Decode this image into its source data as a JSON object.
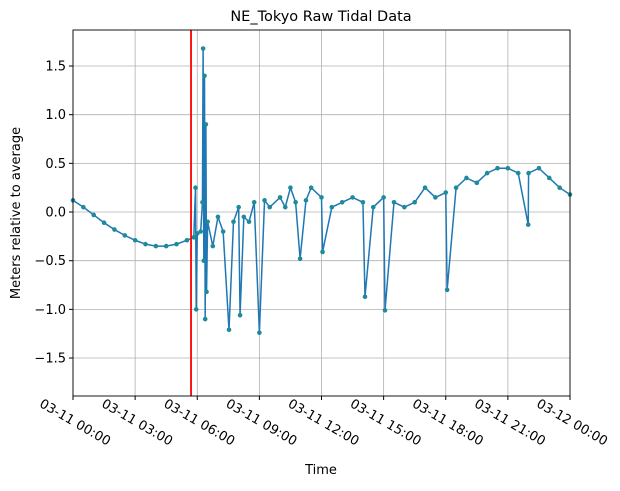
{
  "chart_data": {
    "type": "line",
    "title": "NE_Tokyo Raw Tidal Data",
    "x_label": "Time",
    "y_label": "Meters relative to average",
    "x": [
      "03-11 00:00",
      "03-11 00:30",
      "03-11 01:00",
      "03-11 01:30",
      "03-11 02:00",
      "03-11 02:30",
      "03-11 03:00",
      "03-11 03:30",
      "03-11 04:00",
      "03-11 04:30",
      "03-11 05:00",
      "03-11 05:30",
      "03-11 05:50",
      "03-11 05:55",
      "03-11 05:57",
      "03-11 06:00",
      "03-11 06:10",
      "03-11 06:15",
      "03-11 06:17",
      "03-11 06:19",
      "03-11 06:21",
      "03-11 06:23",
      "03-11 06:25",
      "03-11 06:27",
      "03-11 06:30",
      "03-11 06:45",
      "03-11 07:00",
      "03-11 07:15",
      "03-11 07:32",
      "03-11 07:45",
      "03-11 08:00",
      "03-11 08:04",
      "03-11 08:15",
      "03-11 08:30",
      "03-11 08:45",
      "03-11 09:00",
      "03-11 09:15",
      "03-11 09:30",
      "03-11 10:00",
      "03-11 10:15",
      "03-11 10:30",
      "03-11 10:45",
      "03-11 10:58",
      "03-11 11:15",
      "03-11 11:30",
      "03-11 12:00",
      "03-11 12:03",
      "03-11 12:30",
      "03-11 13:00",
      "03-11 13:30",
      "03-11 14:00",
      "03-11 14:06",
      "03-11 14:30",
      "03-11 15:00",
      "03-11 15:04",
      "03-11 15:30",
      "03-11 16:00",
      "03-11 16:30",
      "03-11 17:00",
      "03-11 17:30",
      "03-11 18:00",
      "03-11 18:04",
      "03-11 18:30",
      "03-11 19:00",
      "03-11 19:30",
      "03-11 20:00",
      "03-11 20:30",
      "03-11 21:00",
      "03-11 21:30",
      "03-11 21:59",
      "03-11 22:00",
      "03-11 22:30",
      "03-11 23:00",
      "03-11 23:30",
      "03-12 00:00"
    ],
    "series": [
      {
        "color": "#1f77b4",
        "marker_color": "#1f8a9a",
        "values": [
          0.12,
          0.05,
          -0.03,
          -0.11,
          -0.18,
          -0.24,
          -0.29,
          -0.33,
          -0.35,
          -0.35,
          -0.33,
          -0.29,
          -0.26,
          0.25,
          -1.0,
          -0.22,
          -0.2,
          0.1,
          1.68,
          -0.5,
          1.4,
          -1.1,
          0.9,
          -0.82,
          -0.1,
          -0.35,
          -0.05,
          -0.2,
          -1.21,
          -0.1,
          0.05,
          -1.06,
          -0.05,
          -0.1,
          0.1,
          -1.24,
          0.12,
          0.05,
          0.15,
          0.05,
          0.25,
          0.1,
          -0.48,
          0.12,
          0.25,
          0.15,
          -0.41,
          0.05,
          0.1,
          0.15,
          0.1,
          -0.87,
          0.05,
          0.15,
          -1.01,
          0.1,
          0.05,
          0.1,
          0.25,
          0.15,
          0.2,
          -0.8,
          0.25,
          0.35,
          0.3,
          0.4,
          0.45,
          0.45,
          0.4,
          -0.13,
          0.4,
          0.45,
          0.35,
          0.25,
          0.18
        ]
      }
    ],
    "vline": {
      "x": "03-11 05:42",
      "color": "red"
    },
    "xlim": [
      "03-11 00:00",
      "03-12 00:00"
    ],
    "xticks": [
      "03-11 00:00",
      "03-11 03:00",
      "03-11 06:00",
      "03-11 09:00",
      "03-11 12:00",
      "03-11 15:00",
      "03-11 18:00",
      "03-11 21:00",
      "03-12 00:00"
    ],
    "ylim": [
      -1.89,
      1.87
    ],
    "yticks": [
      {
        "value": -1.5,
        "label": "−1.5"
      },
      {
        "value": -1,
        "label": "−1.0"
      },
      {
        "value": -0.5,
        "label": "−0.5"
      },
      {
        "value": 0,
        "label": "0.0"
      },
      0.5,
      {
        "value": 1,
        "label": "1.0"
      },
      1.5
    ],
    "grid": true
  }
}
